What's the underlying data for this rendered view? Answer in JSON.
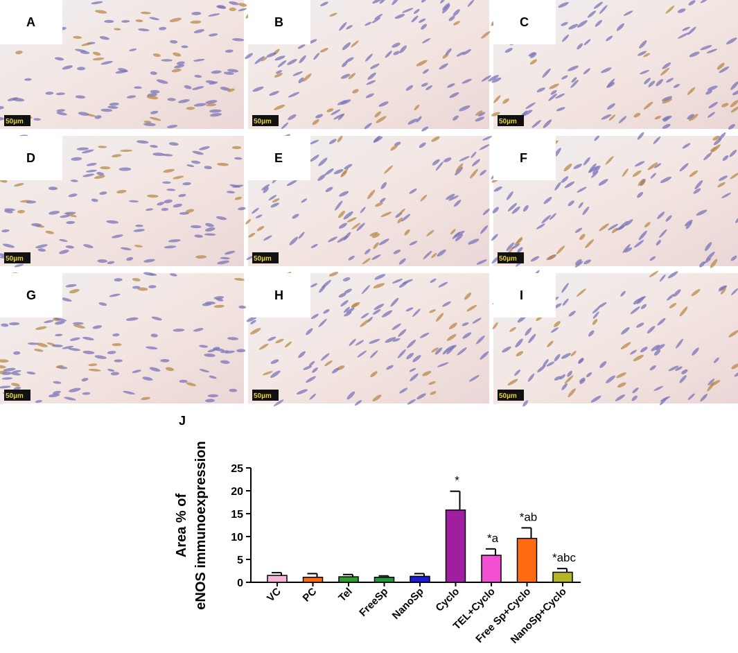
{
  "panels": [
    {
      "label": "A",
      "scale": "50µm"
    },
    {
      "label": "B",
      "scale": "50µm"
    },
    {
      "label": "C",
      "scale": "50µm"
    },
    {
      "label": "D",
      "scale": "50µm"
    },
    {
      "label": "E",
      "scale": "50µm"
    },
    {
      "label": "F",
      "scale": "50µm"
    },
    {
      "label": "G",
      "scale": "50µm"
    },
    {
      "label": "H",
      "scale": "50µm"
    },
    {
      "label": "I",
      "scale": "50µm"
    }
  ],
  "chart_data": {
    "type": "bar",
    "panel_label": "J",
    "ylabel": [
      "Area % of",
      "eNOS immunoexpression"
    ],
    "categories": [
      "VC",
      "PC",
      "Tel",
      "FreeSp",
      "NanoSp",
      "Cyclo",
      "TEL+Cyclo",
      "Free Sp+Cyclo",
      "NanoSp+Cyclo"
    ],
    "values": [
      1.5,
      1.1,
      1.2,
      1.1,
      1.3,
      15.8,
      5.9,
      9.6,
      2.2
    ],
    "errors": [
      0.6,
      0.8,
      0.5,
      0.3,
      0.6,
      4.1,
      1.4,
      2.3,
      0.8
    ],
    "colors": [
      "#f7b6d6",
      "#ff6a13",
      "#2aa02a",
      "#1c9a3a",
      "#1a1ad8",
      "#a01fa0",
      "#f24fd2",
      "#ff6a13",
      "#b4b428"
    ],
    "annotations": [
      {
        "category": "Cyclo",
        "text": "*"
      },
      {
        "category": "TEL+Cyclo",
        "text": "*a"
      },
      {
        "category": "Free Sp+Cyclo",
        "text": "*ab"
      },
      {
        "category": "NanoSp+Cyclo",
        "text": "*abc"
      }
    ],
    "ylim": [
      0,
      25
    ],
    "yticks": [
      0,
      5,
      10,
      15,
      20,
      25
    ]
  }
}
